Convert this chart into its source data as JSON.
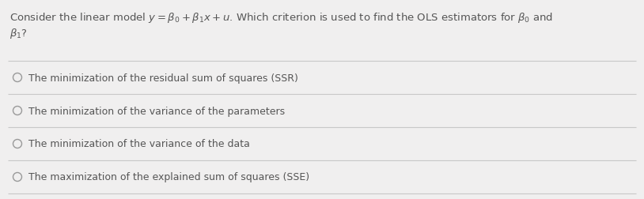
{
  "background_color": "#f0efef",
  "question_line1": "Consider the linear model $y = \\beta_0 + \\beta_1 x + u$. Which criterion is used to find the OLS estimators for $\\beta_0$ and",
  "question_line2": "$\\beta_1$?",
  "options": [
    "The minimization of the residual sum of squares (SSR)",
    "The minimization of the variance of the parameters",
    "The minimization of the variance of the data",
    "The maximization of the explained sum of squares (SSE)"
  ],
  "separator_color": "#c8c8c8",
  "text_color": "#555555",
  "question_fontsize": 9.5,
  "option_fontsize": 9.0,
  "circle_color": "#999999",
  "fig_width": 8.14,
  "fig_height": 2.53,
  "dpi": 100
}
